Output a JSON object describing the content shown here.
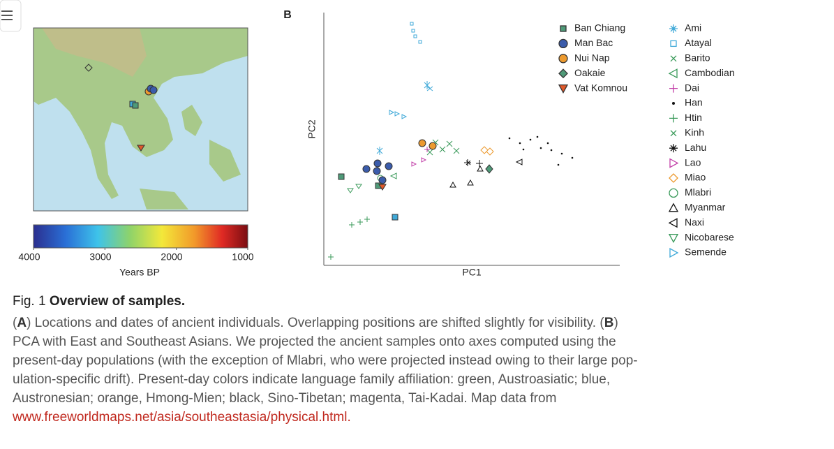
{
  "figure": {
    "panel_a": "A",
    "panel_b": "B",
    "colorbar": {
      "ticks": [
        4000,
        3000,
        2000,
        1000
      ],
      "label": "Years BP"
    },
    "pca": {
      "xlabel": "PC1",
      "ylabel": "PC2"
    },
    "legend_ancient": [
      {
        "name": "Ban Chiang",
        "color": "#4f9a78",
        "marker": "square"
      },
      {
        "name": "Man Bac",
        "color": "#3b5cab",
        "marker": "circle"
      },
      {
        "name": "Nui Nap",
        "color": "#ec9a2f",
        "marker": "circle"
      },
      {
        "name": "Oakaie",
        "color": "#4f9a78",
        "marker": "diamond"
      },
      {
        "name": "Vat Komnou",
        "color": "#e0592a",
        "marker": "triangle-down"
      }
    ],
    "legend_present": [
      {
        "name": "Ami",
        "color": "#3fa9d8",
        "marker": "asterisk"
      },
      {
        "name": "Atayal",
        "color": "#3fa9d8",
        "marker": "open-square"
      },
      {
        "name": "Barito",
        "color": "#3a9a5a",
        "marker": "x"
      },
      {
        "name": "Cambodian",
        "color": "#3a9a5a",
        "marker": "open-triangle-left"
      },
      {
        "name": "Dai",
        "color": "#c23fa8",
        "marker": "plus"
      },
      {
        "name": "Han",
        "color": "#111111",
        "marker": "dot"
      },
      {
        "name": "Htin",
        "color": "#3a9a5a",
        "marker": "plus"
      },
      {
        "name": "Kinh",
        "color": "#3a9a5a",
        "marker": "x"
      },
      {
        "name": "Lahu",
        "color": "#111111",
        "marker": "asterisk"
      },
      {
        "name": "Lao",
        "color": "#c23fa8",
        "marker": "open-triangle-right"
      },
      {
        "name": "Miao",
        "color": "#ec9a2f",
        "marker": "open-diamond"
      },
      {
        "name": "Mlabri",
        "color": "#3a9a5a",
        "marker": "open-circle"
      },
      {
        "name": "Myanmar",
        "color": "#111111",
        "marker": "open-triangle-up"
      },
      {
        "name": "Naxi",
        "color": "#111111",
        "marker": "open-triangle-left"
      },
      {
        "name": "Nicobarese",
        "color": "#3a9a5a",
        "marker": "open-triangle-down"
      },
      {
        "name": "Semende",
        "color": "#3fa9d8",
        "marker": "open-triangle-right"
      }
    ]
  },
  "caption": {
    "label": "Fig. 1",
    "title": "Overview of samples.",
    "lines": [
      [
        "(",
        "A",
        ") Locations and dates of ancient individuals. Overlapping positions are shifted slightly for visibility. (",
        "B",
        ")"
      ],
      [
        "PCA with East and Southeast Asians. We projected the ancient samples onto axes computed using the"
      ],
      [
        "present-day populations (with the exception of Mlabri, who were projected instead owing to their large pop-"
      ],
      [
        "ulation-specific drift). Present-day colors indicate language family affiliation: green, Austroasiatic; blue,"
      ],
      [
        "Austronesian; orange, Hmong-Mien; black, Sino-Tibetan; magenta, Tai-Kadai. Map data from"
      ]
    ],
    "link": "www.freeworldmaps.net/asia/southeastasia/physical.html."
  }
}
